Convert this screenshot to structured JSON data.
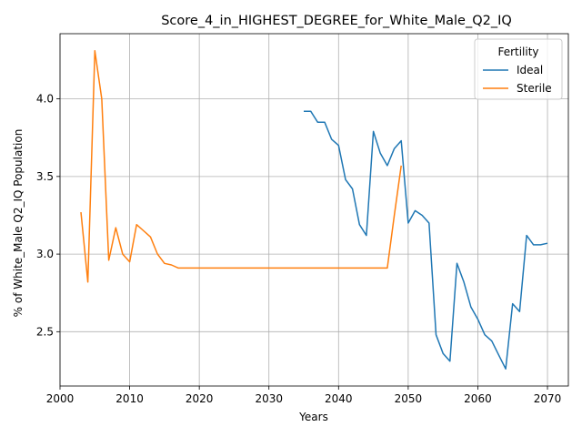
{
  "chart_data": {
    "type": "line",
    "title": "Score_4_in_HIGHEST_DEGREE_for_White_Male_Q2_IQ",
    "xlabel": "Years",
    "ylabel": "% of White_Male Q2_IQ Population",
    "xlim": [
      2000,
      2073
    ],
    "ylim": [
      2.15,
      4.42
    ],
    "xticks": [
      2000,
      2010,
      2020,
      2030,
      2040,
      2050,
      2060,
      2070
    ],
    "yticks": [
      2.5,
      3.0,
      3.5,
      4.0
    ],
    "ytick_labels": [
      "2.5",
      "3.0",
      "3.5",
      "4.0"
    ],
    "grid": true,
    "legend": {
      "title": "Fertility",
      "placement": "top-right"
    },
    "series": [
      {
        "name": "Ideal",
        "color": "#1f77b4",
        "points": [
          [
            2035,
            3.92
          ],
          [
            2036,
            3.92
          ],
          [
            2037,
            3.85
          ],
          [
            2038,
            3.85
          ],
          [
            2039,
            3.74
          ],
          [
            2040,
            3.7
          ],
          [
            2041,
            3.48
          ],
          [
            2042,
            3.42
          ],
          [
            2043,
            3.19
          ],
          [
            2044,
            3.12
          ],
          [
            2045,
            3.79
          ],
          [
            2046,
            3.65
          ],
          [
            2047,
            3.57
          ],
          [
            2048,
            3.68
          ],
          [
            2049,
            3.73
          ],
          [
            2050,
            3.2
          ],
          [
            2051,
            3.28
          ],
          [
            2052,
            3.25
          ],
          [
            2053,
            3.2
          ],
          [
            2054,
            2.48
          ],
          [
            2055,
            2.36
          ],
          [
            2056,
            2.31
          ],
          [
            2057,
            2.94
          ],
          [
            2058,
            2.82
          ],
          [
            2059,
            2.66
          ],
          [
            2060,
            2.58
          ],
          [
            2061,
            2.48
          ],
          [
            2062,
            2.44
          ],
          [
            2063,
            2.35
          ],
          [
            2064,
            2.26
          ],
          [
            2065,
            2.68
          ],
          [
            2066,
            2.63
          ],
          [
            2067,
            3.12
          ],
          [
            2068,
            3.06
          ],
          [
            2069,
            3.06
          ],
          [
            2070,
            3.07
          ]
        ]
      },
      {
        "name": "Sterile",
        "color": "#ff7f0e",
        "points": [
          [
            2003,
            3.27
          ],
          [
            2004,
            2.82
          ],
          [
            2005,
            4.31
          ],
          [
            2006,
            4.0
          ],
          [
            2007,
            2.96
          ],
          [
            2008,
            3.17
          ],
          [
            2009,
            3.0
          ],
          [
            2010,
            2.95
          ],
          [
            2011,
            3.19
          ],
          [
            2012,
            3.15
          ],
          [
            2013,
            3.11
          ],
          [
            2014,
            3.0
          ],
          [
            2015,
            2.94
          ],
          [
            2016,
            2.93
          ],
          [
            2017,
            2.91
          ],
          [
            2018,
            2.91
          ],
          [
            2019,
            2.91
          ],
          [
            2020,
            2.91
          ],
          [
            2021,
            2.91
          ],
          [
            2022,
            2.91
          ],
          [
            2023,
            2.91
          ],
          [
            2024,
            2.91
          ],
          [
            2025,
            2.91
          ],
          [
            2026,
            2.91
          ],
          [
            2027,
            2.91
          ],
          [
            2028,
            2.91
          ],
          [
            2029,
            2.91
          ],
          [
            2030,
            2.91
          ],
          [
            2031,
            2.91
          ],
          [
            2032,
            2.91
          ],
          [
            2033,
            2.91
          ],
          [
            2034,
            2.91
          ],
          [
            2035,
            2.91
          ],
          [
            2036,
            2.91
          ],
          [
            2037,
            2.91
          ],
          [
            2038,
            2.91
          ],
          [
            2039,
            2.91
          ],
          [
            2040,
            2.91
          ],
          [
            2041,
            2.91
          ],
          [
            2042,
            2.91
          ],
          [
            2043,
            2.91
          ],
          [
            2044,
            2.91
          ],
          [
            2045,
            2.91
          ],
          [
            2046,
            2.91
          ],
          [
            2047,
            2.91
          ],
          [
            2048,
            3.25
          ],
          [
            2049,
            3.57
          ]
        ]
      }
    ]
  }
}
